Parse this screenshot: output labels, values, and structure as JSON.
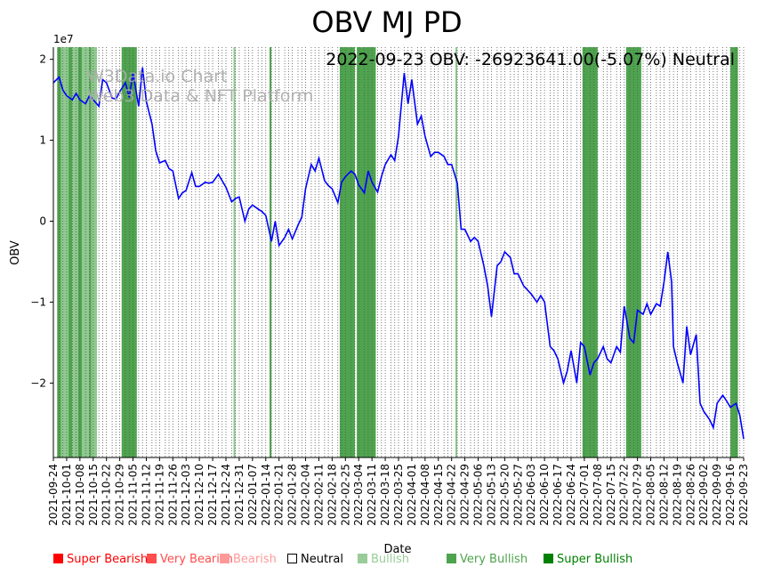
{
  "chart_data": {
    "type": "line",
    "title": "OBV MJ PD",
    "subtitle": "2022-09-23 OBV: -26923641.00(-5.07%) Neutral",
    "watermark": [
      "W3Data.io Chart",
      "Web3 Data & NFT Platform"
    ],
    "xlabel": "Date",
    "ylabel": "OBV",
    "y_scale_label": "1e7",
    "ylim": [
      -2.92,
      2.15
    ],
    "y_ticks": [
      2,
      1,
      0,
      -1,
      -2
    ],
    "y_tick_labels": [
      "2",
      "1",
      "0",
      "−1",
      "−2"
    ],
    "x_start": "2021-09-24",
    "x_end": "2022-09-23",
    "x_tick_labels": [
      "2021-09-24",
      "2021-10-01",
      "2021-10-08",
      "2021-10-15",
      "2021-10-22",
      "2021-10-29",
      "2021-11-05",
      "2021-11-12",
      "2021-11-19",
      "2021-11-26",
      "2021-12-03",
      "2021-12-10",
      "2021-12-17",
      "2021-12-24",
      "2021-12-31",
      "2022-01-07",
      "2022-01-14",
      "2022-01-21",
      "2022-01-28",
      "2022-02-04",
      "2022-02-11",
      "2022-02-18",
      "2022-02-25",
      "2022-03-04",
      "2022-03-11",
      "2022-03-18",
      "2022-03-25",
      "2022-04-01",
      "2022-04-08",
      "2022-04-15",
      "2022-04-22",
      "2022-04-29",
      "2022-05-06",
      "2022-05-13",
      "2022-05-20",
      "2022-05-27",
      "2022-06-03",
      "2022-06-10",
      "2022-06-17",
      "2022-06-24",
      "2022-07-01",
      "2022-07-08",
      "2022-07-15",
      "2022-07-22",
      "2022-07-29",
      "2022-08-05",
      "2022-08-12",
      "2022-08-19",
      "2022-08-26",
      "2022-09-02",
      "2022-09-09",
      "2022-09-16",
      "2022-09-23"
    ],
    "series": [
      {
        "color": "#0000ff",
        "points": [
          [
            "2021-09-24",
            1.71
          ],
          [
            "2021-09-27",
            1.78
          ],
          [
            "2021-09-29",
            1.62
          ],
          [
            "2021-10-01",
            1.55
          ],
          [
            "2021-10-04",
            1.5
          ],
          [
            "2021-10-06",
            1.58
          ],
          [
            "2021-10-08",
            1.5
          ],
          [
            "2021-10-11",
            1.45
          ],
          [
            "2021-10-13",
            1.55
          ],
          [
            "2021-10-15",
            1.5
          ],
          [
            "2021-10-18",
            1.42
          ],
          [
            "2021-10-20",
            1.75
          ],
          [
            "2021-10-22",
            1.71
          ],
          [
            "2021-10-25",
            1.52
          ],
          [
            "2021-10-27",
            1.51
          ],
          [
            "2021-10-29",
            1.6
          ],
          [
            "2021-11-01",
            1.71
          ],
          [
            "2021-11-03",
            1.53
          ],
          [
            "2021-11-05",
            1.83
          ],
          [
            "2021-11-08",
            1.42
          ],
          [
            "2021-11-10",
            1.9
          ],
          [
            "2021-11-12",
            1.48
          ],
          [
            "2021-11-15",
            1.2
          ],
          [
            "2021-11-17",
            0.87
          ],
          [
            "2021-11-19",
            0.72
          ],
          [
            "2021-11-22",
            0.75
          ],
          [
            "2021-11-24",
            0.65
          ],
          [
            "2021-11-26",
            0.62
          ],
          [
            "2021-11-29",
            0.28
          ],
          [
            "2021-12-01",
            0.35
          ],
          [
            "2021-12-03",
            0.38
          ],
          [
            "2021-12-06",
            0.6
          ],
          [
            "2021-12-08",
            0.43
          ],
          [
            "2021-12-10",
            0.43
          ],
          [
            "2021-12-13",
            0.48
          ],
          [
            "2021-12-15",
            0.47
          ],
          [
            "2021-12-17",
            0.48
          ],
          [
            "2021-12-20",
            0.58
          ],
          [
            "2021-12-22",
            0.5
          ],
          [
            "2021-12-24",
            0.42
          ],
          [
            "2021-12-27",
            0.24
          ],
          [
            "2021-12-29",
            0.28
          ],
          [
            "2021-12-31",
            0.3
          ],
          [
            "2022-01-03",
            0.0
          ],
          [
            "2022-01-05",
            0.15
          ],
          [
            "2022-01-07",
            0.2
          ],
          [
            "2022-01-10",
            0.15
          ],
          [
            "2022-01-12",
            0.12
          ],
          [
            "2022-01-14",
            0.07
          ],
          [
            "2022-01-17",
            -0.25
          ],
          [
            "2022-01-19",
            0.0
          ],
          [
            "2022-01-21",
            -0.3
          ],
          [
            "2022-01-24",
            -0.2
          ],
          [
            "2022-01-26",
            -0.1
          ],
          [
            "2022-01-28",
            -0.22
          ],
          [
            "2022-01-31",
            -0.05
          ],
          [
            "2022-02-02",
            0.05
          ],
          [
            "2022-02-04",
            0.4
          ],
          [
            "2022-02-07",
            0.7
          ],
          [
            "2022-02-09",
            0.62
          ],
          [
            "2022-02-11",
            0.78
          ],
          [
            "2022-02-14",
            0.5
          ],
          [
            "2022-02-16",
            0.44
          ],
          [
            "2022-02-18",
            0.4
          ],
          [
            "2022-02-21",
            0.23
          ],
          [
            "2022-02-23",
            0.48
          ],
          [
            "2022-02-25",
            0.55
          ],
          [
            "2022-02-28",
            0.62
          ],
          [
            "2022-03-02",
            0.58
          ],
          [
            "2022-03-04",
            0.45
          ],
          [
            "2022-03-07",
            0.35
          ],
          [
            "2022-03-09",
            0.62
          ],
          [
            "2022-03-11",
            0.48
          ],
          [
            "2022-03-14",
            0.36
          ],
          [
            "2022-03-16",
            0.55
          ],
          [
            "2022-03-18",
            0.7
          ],
          [
            "2022-03-21",
            0.82
          ],
          [
            "2022-03-23",
            0.75
          ],
          [
            "2022-03-25",
            1.05
          ],
          [
            "2022-03-28",
            1.83
          ],
          [
            "2022-03-30",
            1.45
          ],
          [
            "2022-04-01",
            1.75
          ],
          [
            "2022-04-04",
            1.2
          ],
          [
            "2022-04-06",
            1.3
          ],
          [
            "2022-04-08",
            1.05
          ],
          [
            "2022-04-11",
            0.8
          ],
          [
            "2022-04-13",
            0.85
          ],
          [
            "2022-04-15",
            0.85
          ],
          [
            "2022-04-18",
            0.8
          ],
          [
            "2022-04-20",
            0.7
          ],
          [
            "2022-04-22",
            0.7
          ],
          [
            "2022-04-25",
            0.47
          ],
          [
            "2022-04-27",
            -0.1
          ],
          [
            "2022-04-29",
            -0.1
          ],
          [
            "2022-05-02",
            -0.25
          ],
          [
            "2022-05-04",
            -0.2
          ],
          [
            "2022-05-06",
            -0.25
          ],
          [
            "2022-05-09",
            -0.55
          ],
          [
            "2022-05-11",
            -0.8
          ],
          [
            "2022-05-13",
            -1.18
          ],
          [
            "2022-05-16",
            -0.55
          ],
          [
            "2022-05-18",
            -0.5
          ],
          [
            "2022-05-20",
            -0.38
          ],
          [
            "2022-05-23",
            -0.45
          ],
          [
            "2022-05-25",
            -0.65
          ],
          [
            "2022-05-27",
            -0.65
          ],
          [
            "2022-05-30",
            -0.8
          ],
          [
            "2022-06-01",
            -0.85
          ],
          [
            "2022-06-03",
            -0.9
          ],
          [
            "2022-06-06",
            -1.0
          ],
          [
            "2022-06-08",
            -0.92
          ],
          [
            "2022-06-10",
            -1.0
          ],
          [
            "2022-06-13",
            -1.55
          ],
          [
            "2022-06-15",
            -1.6
          ],
          [
            "2022-06-17",
            -1.7
          ],
          [
            "2022-06-20",
            -2.0
          ],
          [
            "2022-06-22",
            -1.85
          ],
          [
            "2022-06-24",
            -1.6
          ],
          [
            "2022-06-27",
            -2.0
          ],
          [
            "2022-06-29",
            -1.5
          ],
          [
            "2022-07-01",
            -1.55
          ],
          [
            "2022-07-04",
            -1.9
          ],
          [
            "2022-07-06",
            -1.75
          ],
          [
            "2022-07-08",
            -1.7
          ],
          [
            "2022-07-11",
            -1.55
          ],
          [
            "2022-07-13",
            -1.7
          ],
          [
            "2022-07-15",
            -1.75
          ],
          [
            "2022-07-18",
            -1.55
          ],
          [
            "2022-07-20",
            -1.62
          ],
          [
            "2022-07-22",
            -1.05
          ],
          [
            "2022-07-25",
            -1.45
          ],
          [
            "2022-07-27",
            -1.5
          ],
          [
            "2022-07-29",
            -1.1
          ],
          [
            "2022-08-01",
            -1.15
          ],
          [
            "2022-08-03",
            -1.02
          ],
          [
            "2022-08-05",
            -1.15
          ],
          [
            "2022-08-08",
            -1.02
          ],
          [
            "2022-08-10",
            -1.05
          ],
          [
            "2022-08-12",
            -0.75
          ],
          [
            "2022-08-14",
            -0.38
          ],
          [
            "2022-08-16",
            -0.75
          ],
          [
            "2022-08-17",
            -1.55
          ],
          [
            "2022-08-19",
            -1.75
          ],
          [
            "2022-08-22",
            -2.0
          ],
          [
            "2022-08-24",
            -1.3
          ],
          [
            "2022-08-26",
            -1.65
          ],
          [
            "2022-08-29",
            -1.4
          ],
          [
            "2022-08-31",
            -2.25
          ],
          [
            "2022-09-02",
            -2.35
          ],
          [
            "2022-09-05",
            -2.45
          ],
          [
            "2022-09-07",
            -2.55
          ],
          [
            "2022-09-09",
            -2.25
          ],
          [
            "2022-09-12",
            -2.15
          ],
          [
            "2022-09-14",
            -2.22
          ],
          [
            "2022-09-16",
            -2.3
          ],
          [
            "2022-09-19",
            -2.25
          ],
          [
            "2022-09-21",
            -2.4
          ],
          [
            "2022-09-23",
            -2.69
          ]
        ]
      }
    ],
    "signal_bands": [
      {
        "from": "2021-09-26",
        "to": "2021-09-28",
        "level": "Very Bullish"
      },
      {
        "from": "2021-09-28",
        "to": "2021-10-02",
        "level": "Bullish"
      },
      {
        "from": "2021-10-02",
        "to": "2021-10-04",
        "level": "Very Bullish"
      },
      {
        "from": "2021-10-04",
        "to": "2021-10-07",
        "level": "Bullish"
      },
      {
        "from": "2021-10-07",
        "to": "2021-10-09",
        "level": "Very Bullish"
      },
      {
        "from": "2021-10-09",
        "to": "2021-10-13",
        "level": "Bullish"
      },
      {
        "from": "2021-10-13",
        "to": "2021-10-14",
        "level": "Very Bullish"
      },
      {
        "from": "2021-10-14",
        "to": "2021-10-17",
        "level": "Bullish"
      },
      {
        "from": "2021-10-30",
        "to": "2021-11-07",
        "level": "Very Bullish"
      },
      {
        "from": "2021-12-28",
        "to": "2021-12-29",
        "level": "Bullish"
      },
      {
        "from": "2022-01-16",
        "to": "2022-01-17",
        "level": "Very Bullish"
      },
      {
        "from": "2022-02-22",
        "to": "2022-03-02",
        "level": "Very Bullish"
      },
      {
        "from": "2022-03-03",
        "to": "2022-03-13",
        "level": "Very Bullish"
      },
      {
        "from": "2022-04-24",
        "to": "2022-04-25",
        "level": "Bullish"
      },
      {
        "from": "2022-06-30",
        "to": "2022-07-08",
        "level": "Very Bullish"
      },
      {
        "from": "2022-07-23",
        "to": "2022-07-31",
        "level": "Very Bullish"
      },
      {
        "from": "2022-09-16",
        "to": "2022-09-20",
        "level": "Very Bullish"
      }
    ],
    "band_colors": {
      "Very Bullish": "#4ea44e",
      "Bullish": "#8fc98f"
    },
    "grid": true,
    "legend": {
      "placement": "bottom",
      "items": [
        {
          "label": "Super Bearish",
          "color": "#ff0000",
          "hollow": false
        },
        {
          "label": "Very Bearish",
          "color": "#ff4d4d",
          "hollow": false
        },
        {
          "label": "Bearish",
          "color": "#ff9999",
          "hollow": false
        },
        {
          "label": "Neutral",
          "color": "#000000",
          "hollow": true
        },
        {
          "label": "Bullish",
          "color": "#99cc99",
          "hollow": false
        },
        {
          "label": "Very Bullish",
          "color": "#4ea44e",
          "hollow": false
        },
        {
          "label": "Super Bullish",
          "color": "#008000",
          "hollow": false
        }
      ]
    }
  }
}
